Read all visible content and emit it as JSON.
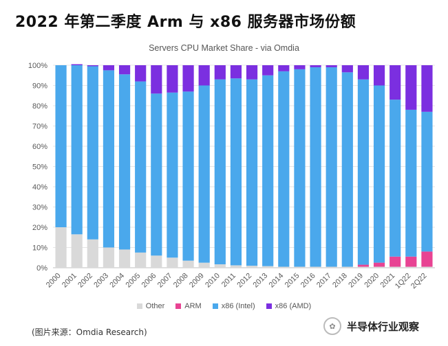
{
  "page": {
    "headline": "2022 年第二季度 Arm 与 x86 服务器市场份额",
    "source": "(图片来源：Omdia Research)",
    "brand": "半导体行业观察"
  },
  "chart_data": {
    "type": "stacked-bar-100",
    "title": "Servers CPU Market Share - via Omdia",
    "categories": [
      "2000",
      "2001",
      "2002",
      "2003",
      "2004",
      "2005",
      "2006",
      "2007",
      "2008",
      "2009",
      "2010",
      "2011",
      "2012",
      "2013",
      "2014",
      "2015",
      "2016",
      "2017",
      "2018",
      "2019",
      "2020",
      "2021",
      "1Q22",
      "2Q22"
    ],
    "ylim": [
      0,
      100
    ],
    "yticks": [
      "0%",
      "10%",
      "20%",
      "30%",
      "40%",
      "50%",
      "60%",
      "70%",
      "80%",
      "90%",
      "100%"
    ],
    "legend_position": "bottom",
    "series": [
      {
        "name": "Other",
        "color": "#d9d9d9",
        "values": [
          20,
          16.5,
          14,
          10,
          9,
          7.5,
          6,
          5,
          3.5,
          2.5,
          1.7,
          1.2,
          1,
          0.8,
          0.5,
          0.5,
          0.5,
          0.5,
          0.5,
          0.5,
          0.5,
          0.5,
          0.5,
          0.5
        ]
      },
      {
        "name": "ARM",
        "color": "#e84393",
        "values": [
          0,
          0,
          0,
          0,
          0,
          0,
          0,
          0,
          0,
          0,
          0,
          0,
          0,
          0,
          0,
          0,
          0,
          0,
          0,
          1,
          2,
          5,
          5,
          7.5
        ]
      },
      {
        "name": "x86 (Intel)",
        "color": "#4aa8ec",
        "values": [
          80,
          83.5,
          85.5,
          87.5,
          86.5,
          84.5,
          80,
          81.5,
          83.5,
          87.5,
          91.3,
          92.3,
          92,
          94.2,
          96.5,
          97.5,
          98.5,
          98.5,
          96,
          91.5,
          87.5,
          77.5,
          72.5,
          69
        ]
      },
      {
        "name": "x86 (AMD)",
        "color": "#7b2fe0",
        "values": [
          0,
          0.5,
          0.5,
          2.5,
          4.5,
          8,
          14,
          13.5,
          13,
          10,
          7,
          6.5,
          7,
          5,
          3,
          2,
          1,
          1,
          3.5,
          7,
          10,
          17,
          22,
          23
        ]
      }
    ]
  }
}
